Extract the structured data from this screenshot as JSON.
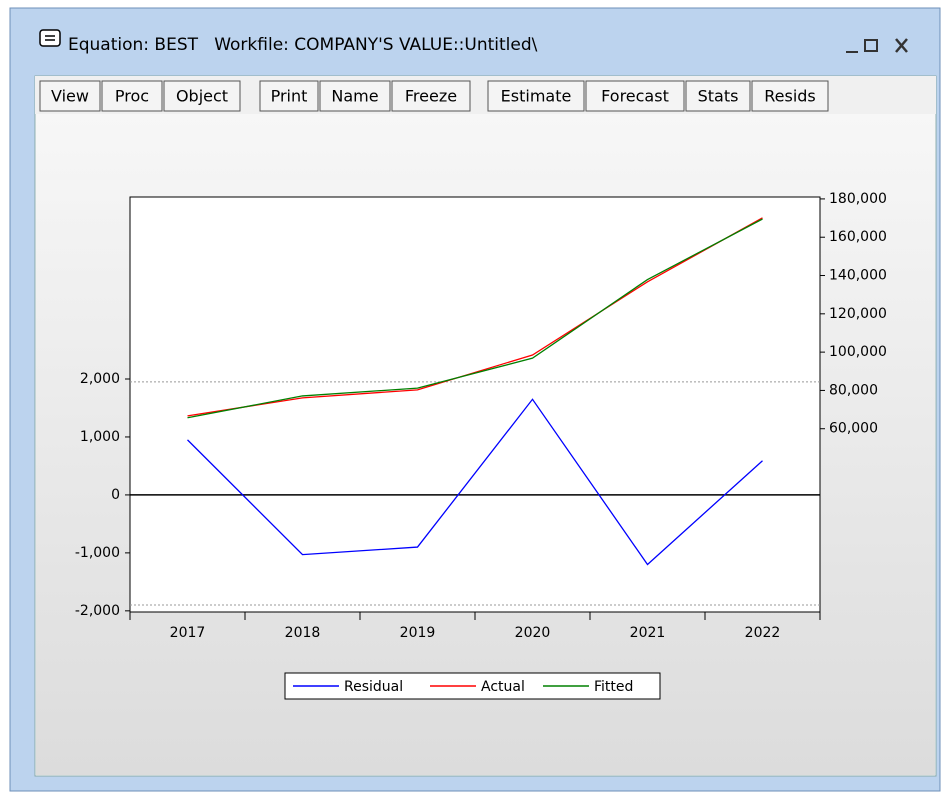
{
  "window": {
    "title": "Equation: BEST   Workfile: COMPANY'S VALUE::Untitled\\"
  },
  "toolbar": {
    "buttons": [
      "View",
      "Proc",
      "Object",
      "Print",
      "Name",
      "Freeze",
      "Estimate",
      "Forecast",
      "Stats",
      "Resids"
    ]
  },
  "chart_data": {
    "type": "line",
    "categories": [
      "2017",
      "2018",
      "2019",
      "2020",
      "2021",
      "2022"
    ],
    "series": [
      {
        "name": "Residual",
        "color": "#0000ff",
        "values": [
          950,
          -1030,
          -900,
          1650,
          -1200,
          590
        ]
      },
      {
        "name": "Actual",
        "color": "#ff0000",
        "axis": "y2",
        "values": [
          66700,
          76100,
          80300,
          98500,
          136700,
          170100
        ]
      },
      {
        "name": "Fitted",
        "color": "#008000",
        "axis": "y2",
        "values": [
          65750,
          77130,
          81200,
          96850,
          137900,
          169510
        ]
      }
    ],
    "ylim": [
      -2020,
      5140
    ],
    "yticks": [
      {
        "value": -2000,
        "label": "-2,000"
      },
      {
        "value": -1000,
        "label": "-1,000"
      },
      0,
      {
        "value": 1000,
        "label": "1,000"
      },
      {
        "value": 2000,
        "label": "2,000"
      }
    ],
    "y2lim": [
      -35700,
      181000
    ],
    "y2ticks": [
      {
        "value": 60000,
        "label": "60,000"
      },
      {
        "value": 80000,
        "label": "80,000"
      },
      {
        "value": 100000,
        "label": "100,000"
      },
      {
        "value": 120000,
        "label": "120,000"
      },
      {
        "value": 140000,
        "label": "140,000"
      },
      {
        "value": 160000,
        "label": "160,000"
      },
      {
        "value": 180000,
        "label": "180,000"
      }
    ],
    "reference_lines": [
      1950,
      -1900
    ],
    "legend": "bottom"
  }
}
